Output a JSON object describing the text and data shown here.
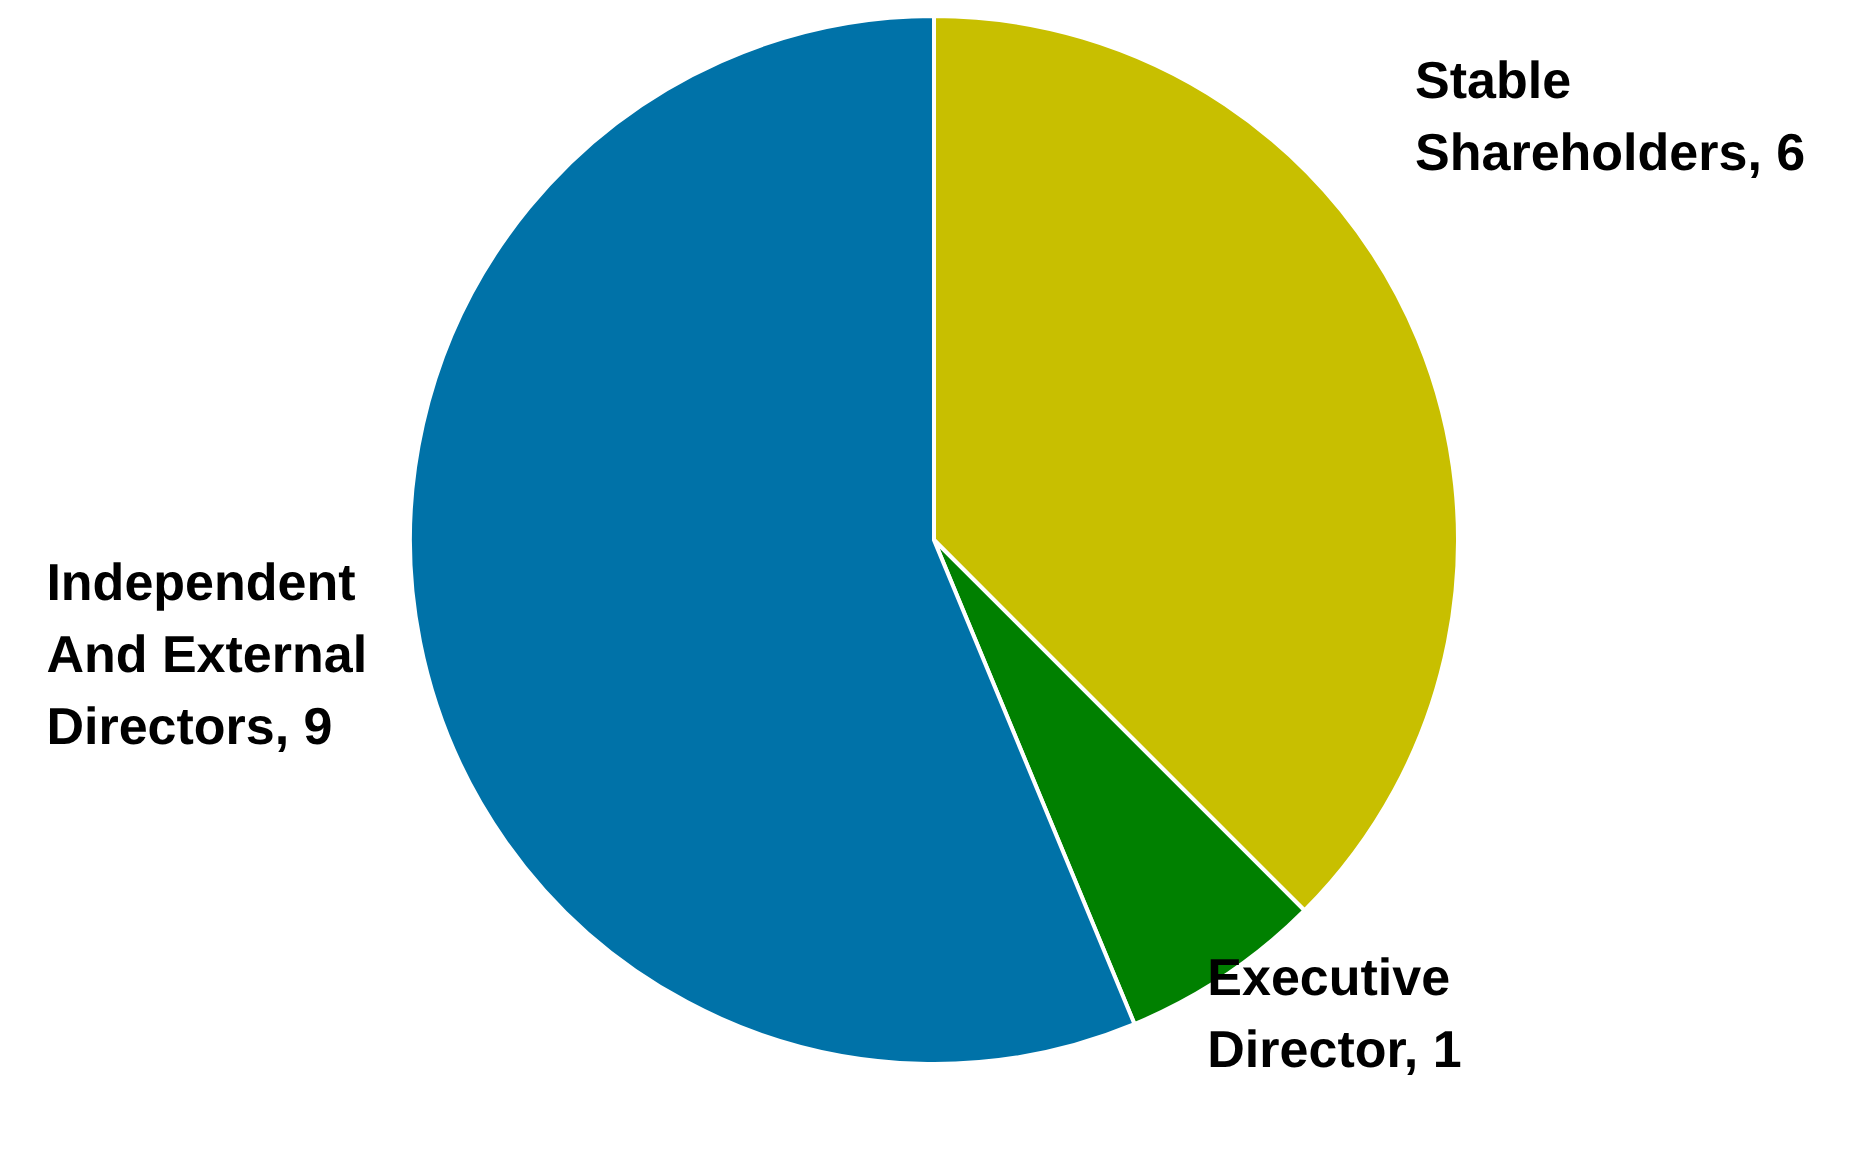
{
  "chart_data": {
    "type": "pie",
    "categories": [
      "Stable Shareholders, 6",
      "Executive Director, 1",
      "Independent And External Directors, 9"
    ],
    "values": [
      6,
      1,
      9
    ],
    "colors": [
      "#c8bf00",
      "#008000",
      "#0072a8"
    ]
  }
}
